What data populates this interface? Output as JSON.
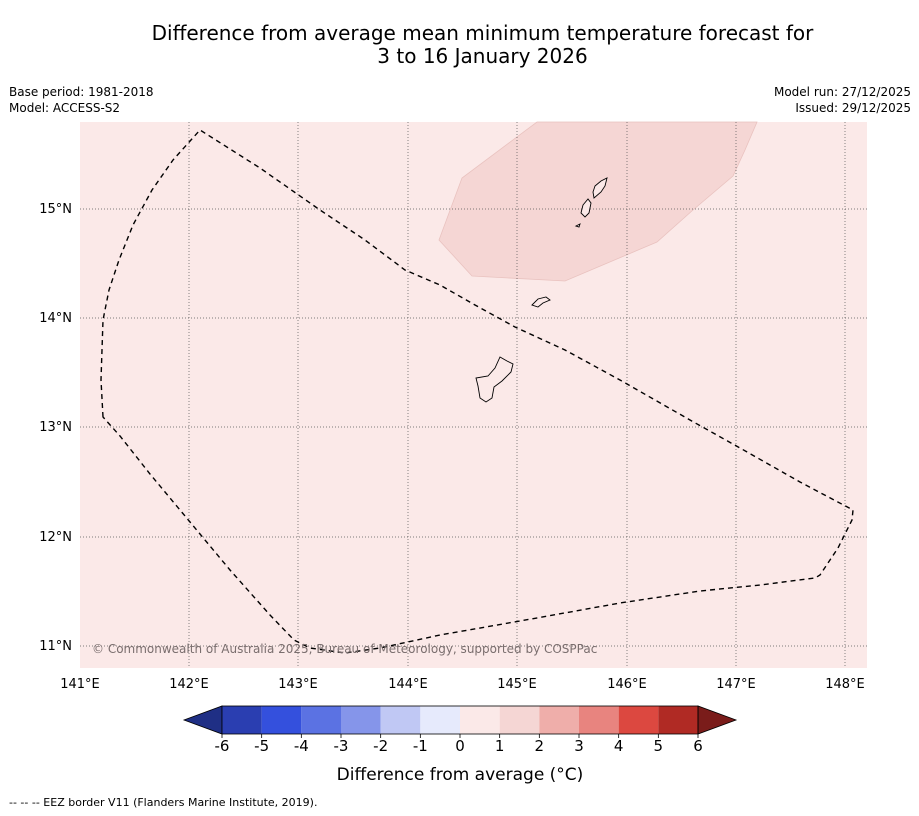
{
  "title": {
    "line1": "Difference from average mean minimum temperature forecast for",
    "line2": "3 to 16 January 2026"
  },
  "meta": {
    "base_period": "Base period: 1981-2018",
    "model": "Model: ACCESS-S2",
    "model_run": "Model run: 27/12/2025",
    "issued": "Issued: 29/12/2025"
  },
  "map": {
    "background_color": "#fbe9e8",
    "anomaly_patch_color": "#f5d6d4",
    "lon_ticks": [
      "141°E",
      "142°E",
      "143°E",
      "144°E",
      "145°E",
      "146°E",
      "147°E",
      "148°E"
    ],
    "lat_ticks": [
      "15°N",
      "14°N",
      "13°N",
      "12°N",
      "11°N"
    ],
    "copyright": "© Commonwealth of Australia 2025, Bureau of Meteorology, supported by COSPPac"
  },
  "colorbar": {
    "ticks": [
      "-6",
      "-5",
      "-4",
      "-3",
      "-2",
      "-1",
      "0",
      "1",
      "2",
      "3",
      "4",
      "5",
      "6"
    ],
    "colors": [
      "#2a3eb1",
      "#3450dd",
      "#5b72e3",
      "#8595ea",
      "#c0c8f4",
      "#e6eafc",
      "#fbe9e8",
      "#f5d6d4",
      "#efaeaa",
      "#e8847f",
      "#dc4840",
      "#b02a24"
    ],
    "under_color": "#1f2f85",
    "over_color": "#7a1c1a",
    "title": "Difference from average (°C)"
  },
  "footnote": "-- -- -- EEZ border V11 (Flanders Marine Institute, 2019)."
}
